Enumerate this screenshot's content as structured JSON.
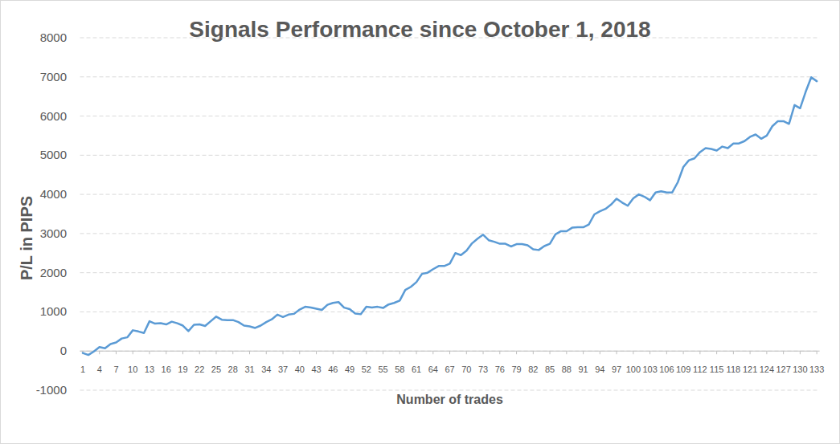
{
  "chart_data": {
    "type": "line",
    "title": "Signals Performance since October 1, 2018",
    "xlabel": "Number of trades",
    "ylabel": "P/L in PIPS",
    "x": [
      1,
      2,
      3,
      4,
      5,
      6,
      7,
      8,
      9,
      10,
      11,
      12,
      13,
      14,
      15,
      16,
      17,
      18,
      19,
      20,
      21,
      22,
      23,
      24,
      25,
      26,
      27,
      28,
      29,
      30,
      31,
      32,
      33,
      34,
      35,
      36,
      37,
      38,
      39,
      40,
      41,
      42,
      43,
      44,
      45,
      46,
      47,
      48,
      49,
      50,
      51,
      52,
      53,
      54,
      55,
      56,
      57,
      58,
      59,
      60,
      61,
      62,
      63,
      64,
      65,
      66,
      67,
      68,
      69,
      70,
      71,
      72,
      73,
      74,
      75,
      76,
      77,
      78,
      79,
      80,
      81,
      82,
      83,
      84,
      85,
      86,
      87,
      88,
      89,
      90,
      91,
      92,
      93,
      94,
      95,
      96,
      97,
      98,
      99,
      100,
      101,
      102,
      103,
      104,
      105,
      106,
      107,
      108,
      109,
      110,
      111,
      112,
      113,
      114,
      115,
      116,
      117,
      118,
      119,
      120,
      121,
      122,
      123,
      124,
      125,
      126,
      127,
      128,
      129,
      130,
      131,
      132,
      133
    ],
    "values": [
      -50,
      -100,
      -10,
      100,
      70,
      180,
      220,
      320,
      350,
      530,
      500,
      460,
      760,
      700,
      710,
      680,
      750,
      710,
      650,
      510,
      670,
      680,
      640,
      760,
      880,
      800,
      790,
      790,
      740,
      650,
      630,
      590,
      650,
      740,
      810,
      930,
      870,
      930,
      950,
      1060,
      1130,
      1110,
      1080,
      1050,
      1180,
      1230,
      1250,
      1110,
      1070,
      960,
      940,
      1130,
      1110,
      1130,
      1100,
      1190,
      1230,
      1290,
      1560,
      1640,
      1760,
      1970,
      2000,
      2090,
      2170,
      2170,
      2230,
      2500,
      2450,
      2560,
      2750,
      2870,
      2970,
      2830,
      2790,
      2740,
      2740,
      2670,
      2730,
      2730,
      2700,
      2600,
      2580,
      2680,
      2740,
      2980,
      3060,
      3060,
      3150,
      3160,
      3160,
      3230,
      3490,
      3570,
      3630,
      3740,
      3890,
      3790,
      3710,
      3900,
      4000,
      3940,
      3850,
      4050,
      4080,
      4050,
      4050,
      4310,
      4700,
      4870,
      4920,
      5080,
      5180,
      5160,
      5120,
      5220,
      5180,
      5300,
      5300,
      5360,
      5470,
      5530,
      5420,
      5500,
      5740,
      5870,
      5870,
      5800,
      6280,
      6200,
      6620,
      6990,
      6890
    ],
    "color": "#5b9bd5",
    "xlim": [
      0.5,
      133.5
    ],
    "xticks": [
      1,
      4,
      7,
      10,
      13,
      16,
      19,
      22,
      25,
      28,
      31,
      34,
      37,
      40,
      43,
      46,
      49,
      52,
      55,
      58,
      61,
      64,
      67,
      70,
      73,
      76,
      79,
      82,
      85,
      88,
      91,
      94,
      97,
      100,
      103,
      106,
      109,
      112,
      115,
      118,
      121,
      124,
      127,
      130,
      133
    ],
    "ylim": [
      -1000,
      8000
    ],
    "yticks": [
      -1000,
      0,
      1000,
      2000,
      3000,
      4000,
      5000,
      6000,
      7000,
      8000
    ],
    "grid": true
  }
}
